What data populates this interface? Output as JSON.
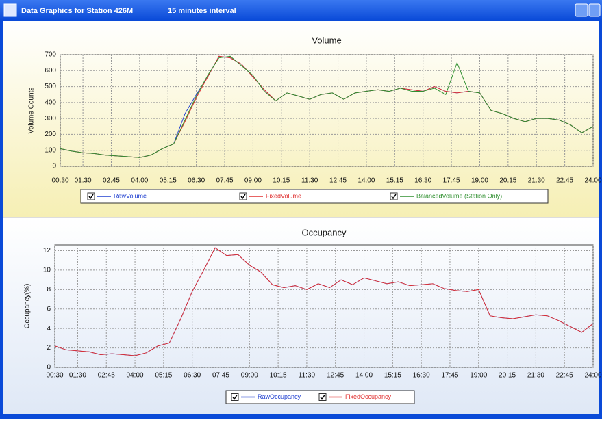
{
  "window": {
    "title": "Data Graphics for Station 426M",
    "subtitle": "15 minutes interval"
  },
  "chart_data": [
    {
      "type": "line",
      "title": "Volume",
      "y_label": "Volume Counts",
      "x": [
        0.5,
        1,
        1.5,
        2,
        2.5,
        3,
        3.5,
        4,
        4.5,
        5,
        5.5,
        6,
        6.5,
        7,
        7.5,
        8,
        8.5,
        9,
        9.5,
        10,
        10.5,
        11,
        11.5,
        12,
        12.5,
        13,
        13.5,
        14,
        14.5,
        15,
        15.5,
        16,
        16.5,
        17,
        17.5,
        18,
        18.5,
        19,
        19.5,
        20,
        20.5,
        21,
        21.5,
        22,
        22.5,
        23,
        23.5,
        24
      ],
      "series": [
        {
          "name": "RawVolume",
          "color": "#2040d0",
          "values": [
            110,
            95,
            85,
            80,
            70,
            65,
            60,
            55,
            70,
            110,
            140,
            330,
            450,
            560,
            690,
            680,
            640,
            560,
            480,
            410,
            460,
            440,
            420,
            450,
            460,
            420,
            460,
            470,
            480,
            470,
            490,
            480,
            470,
            500,
            470,
            460,
            470,
            460,
            350,
            330,
            300,
            280,
            300,
            300,
            290,
            260,
            210,
            250
          ]
        },
        {
          "name": "FixedVolume",
          "color": "#e03030",
          "values": [
            110,
            95,
            85,
            80,
            70,
            65,
            60,
            55,
            70,
            110,
            140,
            280,
            430,
            560,
            690,
            680,
            640,
            560,
            480,
            410,
            460,
            440,
            420,
            450,
            460,
            420,
            460,
            470,
            480,
            470,
            490,
            480,
            470,
            500,
            470,
            460,
            470,
            460,
            350,
            330,
            300,
            280,
            300,
            300,
            290,
            260,
            210,
            250
          ]
        },
        {
          "name": "BalancedVolume (Station Only)",
          "color": "#309030",
          "values": [
            110,
            95,
            85,
            80,
            70,
            65,
            60,
            55,
            70,
            110,
            140,
            290,
            440,
            570,
            680,
            690,
            630,
            570,
            470,
            410,
            460,
            440,
            420,
            450,
            460,
            420,
            460,
            470,
            480,
            470,
            490,
            470,
            470,
            490,
            450,
            650,
            470,
            460,
            350,
            330,
            300,
            280,
            300,
            300,
            290,
            260,
            210,
            250
          ]
        }
      ],
      "xlim": [
        0.5,
        24
      ],
      "xticks": [
        {
          "value": 0.5,
          "label": "00:30"
        },
        {
          "value": 1.5,
          "label": "01:30"
        },
        {
          "value": 2.75,
          "label": "02:45"
        },
        {
          "value": 4,
          "label": "04:00"
        },
        {
          "value": 5.25,
          "label": "05:15"
        },
        {
          "value": 6.5,
          "label": "06:30"
        },
        {
          "value": 7.75,
          "label": "07:45"
        },
        {
          "value": 9,
          "label": "09:00"
        },
        {
          "value": 10.25,
          "label": "10:15"
        },
        {
          "value": 11.5,
          "label": "11:30"
        },
        {
          "value": 12.75,
          "label": "12:45"
        },
        {
          "value": 14,
          "label": "14:00"
        },
        {
          "value": 15.25,
          "label": "15:15"
        },
        {
          "value": 16.5,
          "label": "16:30"
        },
        {
          "value": 17.75,
          "label": "17:45"
        },
        {
          "value": 19,
          "label": "19:00"
        },
        {
          "value": 20.25,
          "label": "20:15"
        },
        {
          "value": 21.5,
          "label": "21:30"
        },
        {
          "value": 22.75,
          "label": "22:45"
        },
        {
          "value": 24,
          "label": "24:00"
        }
      ],
      "ylim": [
        0,
        700
      ],
      "yticks": [
        0,
        100,
        200,
        300,
        400,
        500,
        600,
        700
      ],
      "grid": true
    },
    {
      "type": "line",
      "title": "Occupancy",
      "y_label": "Occupancy(%)",
      "x": [
        0.5,
        1,
        1.5,
        2,
        2.5,
        3,
        3.5,
        4,
        4.5,
        5,
        5.5,
        6,
        6.5,
        7,
        7.5,
        8,
        8.5,
        9,
        9.5,
        10,
        10.5,
        11,
        11.5,
        12,
        12.5,
        13,
        13.5,
        14,
        14.5,
        15,
        15.5,
        16,
        16.5,
        17,
        17.5,
        18,
        18.5,
        19,
        19.5,
        20,
        20.5,
        21,
        21.5,
        22,
        22.5,
        23,
        23.5,
        24
      ],
      "series": [
        {
          "name": "RawOccupancy",
          "color": "#2040d0",
          "values": [
            2.2,
            1.8,
            1.7,
            1.6,
            1.3,
            1.4,
            1.3,
            1.2,
            1.5,
            2.2,
            2.5,
            5,
            7.8,
            10,
            12.3,
            11.5,
            11.6,
            10.5,
            9.8,
            8.5,
            8.2,
            8.4,
            8,
            8.6,
            8.2,
            9,
            8.5,
            9.2,
            8.9,
            8.6,
            8.8,
            8.4,
            8.5,
            8.6,
            8.1,
            7.9,
            7.8,
            8,
            5.3,
            5.1,
            5,
            5.2,
            5.4,
            5.3,
            4.8,
            4.2,
            3.6,
            4.5
          ]
        },
        {
          "name": "FixedOccupancy",
          "color": "#e03030",
          "values": [
            2.2,
            1.8,
            1.7,
            1.6,
            1.3,
            1.4,
            1.3,
            1.2,
            1.5,
            2.2,
            2.5,
            5,
            7.8,
            10,
            12.3,
            11.5,
            11.6,
            10.5,
            9.8,
            8.5,
            8.2,
            8.4,
            8,
            8.6,
            8.2,
            9,
            8.5,
            9.2,
            8.9,
            8.6,
            8.8,
            8.4,
            8.5,
            8.6,
            8.1,
            7.9,
            7.8,
            8,
            5.3,
            5.1,
            5,
            5.2,
            5.4,
            5.3,
            4.8,
            4.2,
            3.6,
            4.5
          ]
        }
      ],
      "xlim": [
        0.5,
        24
      ],
      "xticks": [
        {
          "value": 0.5,
          "label": "00:30"
        },
        {
          "value": 1.5,
          "label": "01:30"
        },
        {
          "value": 2.75,
          "label": "02:45"
        },
        {
          "value": 4,
          "label": "04:00"
        },
        {
          "value": 5.25,
          "label": "05:15"
        },
        {
          "value": 6.5,
          "label": "06:30"
        },
        {
          "value": 7.75,
          "label": "07:45"
        },
        {
          "value": 9,
          "label": "09:00"
        },
        {
          "value": 10.25,
          "label": "10:15"
        },
        {
          "value": 11.5,
          "label": "11:30"
        },
        {
          "value": 12.75,
          "label": "12:45"
        },
        {
          "value": 14,
          "label": "14:00"
        },
        {
          "value": 15.25,
          "label": "15:15"
        },
        {
          "value": 16.5,
          "label": "16:30"
        },
        {
          "value": 17.75,
          "label": "17:45"
        },
        {
          "value": 19,
          "label": "19:00"
        },
        {
          "value": 20.25,
          "label": "20:15"
        },
        {
          "value": 21.5,
          "label": "21:30"
        },
        {
          "value": 22.75,
          "label": "22:45"
        },
        {
          "value": 24,
          "label": "24:00"
        }
      ],
      "ylim": [
        0,
        12.6
      ],
      "yticks": [
        0,
        2,
        4,
        6,
        8,
        10,
        12
      ],
      "grid": true
    }
  ]
}
